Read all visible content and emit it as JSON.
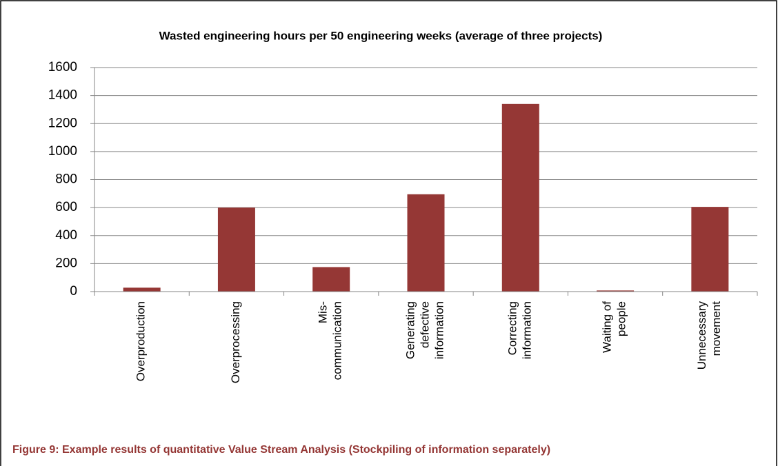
{
  "chart_data": {
    "type": "bar",
    "title": "Wasted engineering hours per 50 engineering weeks (average of three projects)",
    "categories": [
      "Overproduction",
      "Overprocessing",
      "Mis-\ncommunication",
      "Generating\ndefective\ninformation",
      "Correcting\ninformation",
      "Waiting of\npeople",
      "Unnecessary\nmovement"
    ],
    "values": [
      28,
      600,
      175,
      695,
      1340,
      8,
      605
    ],
    "color": "#953735",
    "ylim": [
      0,
      1600
    ],
    "yticks": [
      0,
      200,
      400,
      600,
      800,
      1000,
      1200,
      1400,
      1600
    ],
    "grid": true,
    "caption": "Figure 9: Example results of quantitative Value Stream Analysis (Stockpiling of information separately)"
  }
}
